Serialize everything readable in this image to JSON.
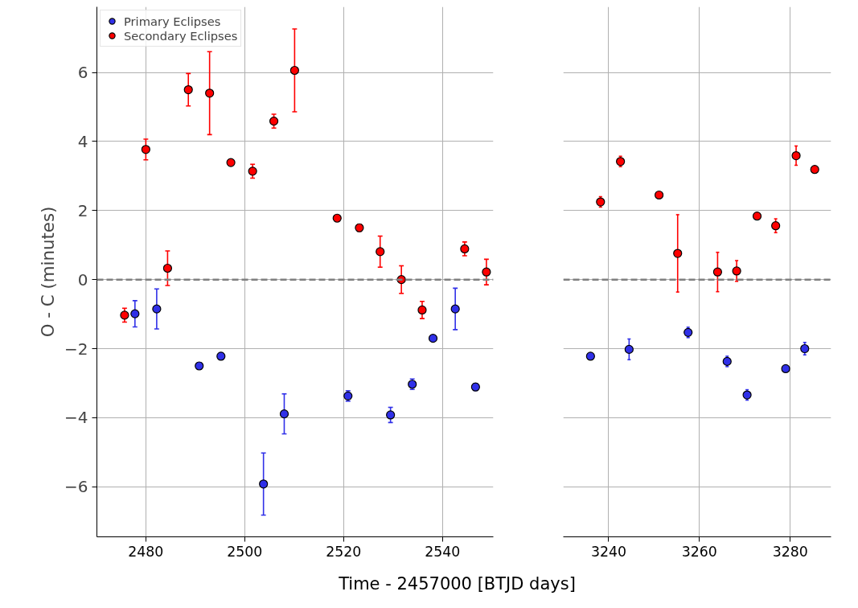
{
  "chart_data": [
    {
      "type": "scatter",
      "ylabel": "O - C (minutes)",
      "xlabel": "Time - 2457000 [BTJD days]",
      "xlim": [
        2470.1,
        2550.3
      ],
      "ylim": [
        -7.45,
        7.9
      ],
      "xticks": [
        2480,
        2500,
        2520,
        2540
      ],
      "yticks": [
        {
          "value": -6,
          "label": "−6"
        },
        {
          "value": -4,
          "label": "−4"
        },
        {
          "value": -2,
          "label": "−2"
        },
        0,
        2,
        4,
        6
      ],
      "grid": true,
      "legend": "top left",
      "marker": "circle",
      "ref_lines": [
        {
          "axis": "y",
          "value": 0,
          "color": "#808080",
          "line_style": "dashed"
        }
      ],
      "series": [
        {
          "name": "Primary Eclipses",
          "color": "#3030e8",
          "x": [
            2477.8,
            2482.2,
            2490.8,
            2495.2,
            2503.8,
            2508.0,
            2520.9,
            2529.5,
            2533.9,
            2538.1,
            2542.6,
            2546.7
          ],
          "values": [
            -0.99,
            -0.85,
            -2.5,
            -2.22,
            -5.92,
            -3.89,
            -3.37,
            -3.92,
            -3.03,
            -1.7,
            -0.85,
            -3.11
          ],
          "errors": [
            0.38,
            0.58,
            0.1,
            0.1,
            0.9,
            0.58,
            0.15,
            0.22,
            0.15,
            0.05,
            0.6,
            0.1
          ]
        },
        {
          "name": "Secondary Eclipses",
          "color": "#ff0000",
          "x": [
            2475.7,
            2480.0,
            2484.4,
            2488.6,
            2492.9,
            2497.2,
            2501.6,
            2505.9,
            2510.1,
            2518.7,
            2523.2,
            2527.4,
            2531.7,
            2535.9,
            2544.5,
            2548.9
          ],
          "values": [
            -1.03,
            3.77,
            0.33,
            5.5,
            5.4,
            3.39,
            3.14,
            4.59,
            6.06,
            1.78,
            1.5,
            0.81,
            0,
            -0.88,
            0.89,
            0.22
          ],
          "errors": [
            0.2,
            0.3,
            0.5,
            0.47,
            1.2,
            0.05,
            0.2,
            0.2,
            1.2,
            0.05,
            0.1,
            0.45,
            0.4,
            0.25,
            0.2,
            0.37
          ]
        }
      ]
    },
    {
      "type": "scatter",
      "xlim": [
        3230,
        3289
      ],
      "ylim": [
        -7.45,
        7.9
      ],
      "xticks": [
        3240,
        3260,
        3280
      ],
      "yticks": [
        -6,
        -4,
        -2,
        0,
        2,
        4,
        6
      ],
      "tick_labels": "x",
      "grid": true,
      "marker": "circle",
      "ref_lines": [
        {
          "axis": "y",
          "value": 0,
          "color": "#808080",
          "line_style": "dashed"
        }
      ],
      "series": [
        {
          "color": "#3030e8",
          "x": [
            3236.0,
            3244.5,
            3257.5,
            3266.1,
            3270.5,
            3279.0,
            3283.2
          ],
          "values": [
            -2.22,
            -2.02,
            -1.53,
            -2.37,
            -3.34,
            -2.58,
            -2.0
          ],
          "errors": [
            0.05,
            0.3,
            0.15,
            0.15,
            0.15,
            0.05,
            0.18
          ]
        },
        {
          "color": "#ff0000",
          "x": [
            3238.2,
            3242.6,
            3251.1,
            3255.2,
            3264.0,
            3268.2,
            3272.7,
            3276.8,
            3281.3,
            3285.4
          ],
          "values": [
            2.25,
            3.42,
            2.45,
            0.76,
            0.22,
            0.25,
            1.84,
            1.56,
            3.59,
            3.19
          ],
          "errors": [
            0.15,
            0.15,
            0.05,
            1.12,
            0.57,
            0.3,
            0.05,
            0.2,
            0.28,
            0.05
          ]
        }
      ]
    }
  ]
}
